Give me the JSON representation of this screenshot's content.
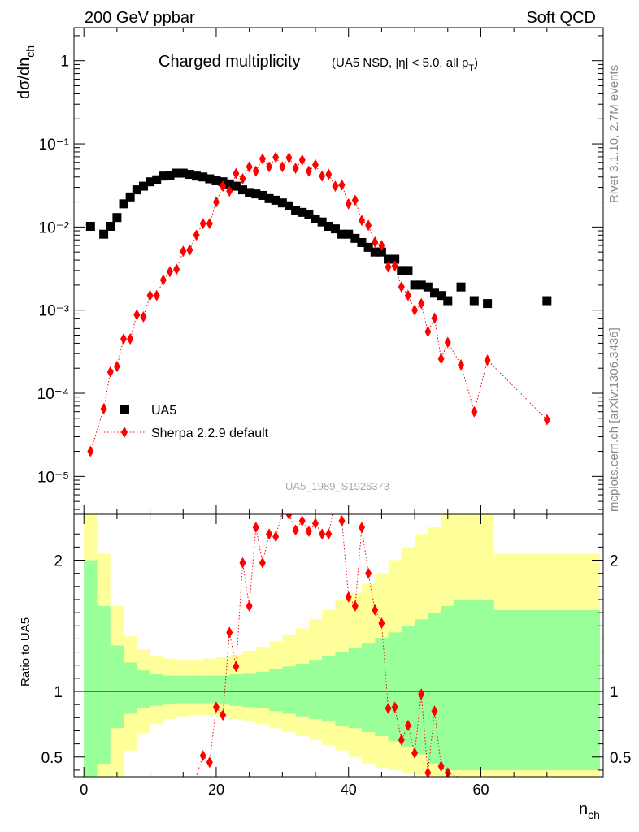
{
  "header": {
    "left": "200 GeV ppbar",
    "right": "Soft QCD"
  },
  "side_text": {
    "top": "Rivet 3.1.10,  2.7M events",
    "bottom": "mcplots.cern.ch [arXiv:1306.3436]"
  },
  "plot": {
    "title_main": "Charged multiplicity",
    "title_detail": "(UA5 NSD, |η| < 5.0, all p",
    "title_sub": "T",
    "title_close": ")",
    "ylabel_main": "dσ/dn",
    "ylabel_sub": "ch",
    "ylabel_ratio": "Ratio to UA5",
    "xlabel_main": "n",
    "xlabel_sub": "ch",
    "watermark": "UA5_1989_S1926373"
  },
  "chart_data": [
    {
      "type": "scatter",
      "panel": "main",
      "yscale": "log",
      "xlim": [
        -1.5,
        78.5
      ],
      "ylim": [
        3.5e-06,
        2.5
      ],
      "y_tick_labels": [
        "10⁻⁵",
        "10⁻⁴",
        "10⁻³",
        "10⁻²",
        "10⁻¹",
        "1"
      ],
      "x_tick_labels": [
        "0",
        "20",
        "40",
        "60"
      ],
      "legend_position": "bottom-left",
      "series": [
        {
          "name": "UA5",
          "color": "#000000",
          "marker": "square",
          "x": [
            1,
            3,
            4,
            5,
            6,
            7,
            8,
            9,
            10,
            11,
            12,
            13,
            14,
            15,
            16,
            17,
            18,
            19,
            20,
            21,
            22,
            23,
            24,
            25,
            26,
            27,
            28,
            29,
            30,
            31,
            32,
            33,
            34,
            35,
            36,
            37,
            38,
            39,
            40,
            41,
            42,
            43,
            44,
            45,
            46,
            47,
            48,
            49,
            50,
            51,
            52,
            53,
            54,
            55,
            57,
            59,
            61,
            70
          ],
          "y": [
            0.0102,
            0.0082,
            0.0102,
            0.013,
            0.019,
            0.023,
            0.028,
            0.031,
            0.035,
            0.037,
            0.041,
            0.042,
            0.0445,
            0.0445,
            0.043,
            0.041,
            0.04,
            0.038,
            0.036,
            0.035,
            0.033,
            0.031,
            0.028,
            0.026,
            0.025,
            0.024,
            0.022,
            0.021,
            0.0195,
            0.018,
            0.016,
            0.015,
            0.014,
            0.0125,
            0.0115,
            0.0102,
            0.0095,
            0.0082,
            0.0082,
            0.0073,
            0.0065,
            0.0057,
            0.005,
            0.005,
            0.0041,
            0.0041,
            0.003,
            0.003,
            0.002,
            0.002,
            0.0019,
            0.0016,
            0.0015,
            0.0013,
            0.0019,
            0.0013,
            0.0012,
            0.0013
          ]
        },
        {
          "name": "Sherpa 2.2.9 default",
          "color": "#ff0000",
          "marker": "diamond",
          "line": "dotted",
          "x": [
            1,
            3,
            4,
            5,
            6,
            7,
            8,
            9,
            10,
            11,
            12,
            13,
            14,
            15,
            16,
            17,
            18,
            19,
            20,
            21,
            22,
            23,
            24,
            25,
            26,
            27,
            28,
            29,
            30,
            31,
            32,
            33,
            34,
            35,
            36,
            37,
            38,
            39,
            40,
            41,
            42,
            43,
            44,
            45,
            46,
            47,
            48,
            49,
            50,
            51,
            52,
            53,
            54,
            55,
            57,
            59,
            61,
            70
          ],
          "y": [
            2e-05,
            6.5e-05,
            0.00018,
            0.00021,
            0.00045,
            0.00045,
            0.00088,
            0.00083,
            0.0015,
            0.0015,
            0.0023,
            0.0029,
            0.0031,
            0.0051,
            0.0053,
            0.008,
            0.011,
            0.011,
            0.02,
            0.031,
            0.027,
            0.044,
            0.038,
            0.053,
            0.047,
            0.066,
            0.053,
            0.069,
            0.053,
            0.068,
            0.051,
            0.064,
            0.047,
            0.056,
            0.041,
            0.043,
            0.031,
            0.032,
            0.019,
            0.021,
            0.012,
            0.0105,
            0.0066,
            0.006,
            0.0033,
            0.0034,
            0.0019,
            0.0015,
            0.001,
            0.0012,
            0.00055,
            0.0008,
            0.00026,
            0.00041,
            0.00022,
            6e-05,
            0.00025,
            4.8e-05
          ]
        }
      ]
    },
    {
      "type": "area",
      "panel": "ratio",
      "ylim": [
        0.35,
        2.35
      ],
      "y_tick_labels": [
        "0.5",
        "1",
        "2"
      ],
      "reference_line": 1,
      "bands": [
        {
          "name": "2 sigma",
          "color": "#ffff99",
          "x_edges": [
            0,
            2,
            4,
            6,
            8,
            10,
            12,
            14,
            16,
            18,
            20,
            22,
            24,
            26,
            28,
            30,
            32,
            34,
            36,
            38,
            40,
            42,
            44,
            46,
            48,
            50,
            52,
            54,
            56,
            58,
            60,
            62,
            78
          ],
          "upper": [
            2.35,
            2.05,
            1.65,
            1.42,
            1.32,
            1.27,
            1.25,
            1.24,
            1.24,
            1.25,
            1.26,
            1.28,
            1.31,
            1.34,
            1.38,
            1.43,
            1.48,
            1.55,
            1.62,
            1.7,
            1.75,
            1.82,
            1.9,
            2.0,
            2.1,
            2.2,
            2.25,
            2.35,
            2.35,
            2.35,
            2.35,
            2.05,
            2.05
          ],
          "lower": [
            0.35,
            0.35,
            0.35,
            0.55,
            0.68,
            0.75,
            0.79,
            0.81,
            0.82,
            0.82,
            0.81,
            0.79,
            0.77,
            0.75,
            0.72,
            0.69,
            0.66,
            0.63,
            0.59,
            0.55,
            0.5,
            0.45,
            0.42,
            0.4,
            0.38,
            0.36,
            0.35,
            0.35,
            0.35,
            0.35,
            0.35,
            0.35,
            0.35
          ]
        },
        {
          "name": "1 sigma",
          "color": "#99ff99",
          "x_edges": [
            0,
            2,
            4,
            6,
            8,
            10,
            12,
            14,
            16,
            18,
            20,
            22,
            24,
            26,
            28,
            30,
            32,
            34,
            36,
            38,
            40,
            42,
            44,
            46,
            48,
            50,
            52,
            54,
            56,
            58,
            60,
            62,
            78
          ],
          "upper": [
            2.0,
            1.65,
            1.35,
            1.22,
            1.16,
            1.13,
            1.12,
            1.12,
            1.12,
            1.12,
            1.12,
            1.13,
            1.14,
            1.15,
            1.17,
            1.19,
            1.21,
            1.24,
            1.27,
            1.3,
            1.33,
            1.37,
            1.41,
            1.45,
            1.5,
            1.55,
            1.6,
            1.65,
            1.7,
            1.7,
            1.7,
            1.62,
            1.62
          ],
          "lower": [
            0.35,
            0.45,
            0.72,
            0.83,
            0.87,
            0.89,
            0.9,
            0.91,
            0.91,
            0.91,
            0.9,
            0.89,
            0.88,
            0.87,
            0.85,
            0.83,
            0.81,
            0.79,
            0.77,
            0.74,
            0.72,
            0.69,
            0.66,
            0.62,
            0.58,
            0.52,
            0.45,
            0.4,
            0.4,
            0.4,
            0.4,
            0.4,
            0.4
          ]
        }
      ],
      "series": [
        {
          "name": "Sherpa 2.2.9 default",
          "color": "#ff0000",
          "marker": "diamond",
          "line": "dotted",
          "x": [
            16,
            18,
            19,
            20,
            21,
            22,
            23,
            24,
            25,
            26,
            27,
            28,
            29,
            30,
            31,
            32,
            33,
            34,
            35,
            36,
            37,
            38,
            39,
            40,
            41,
            42,
            43,
            44,
            45,
            46,
            47,
            48,
            49,
            50,
            51,
            52,
            53,
            54,
            55,
            57,
            59
          ],
          "y": [
            0.2,
            0.51,
            0.46,
            0.88,
            0.82,
            1.45,
            1.19,
            1.98,
            1.65,
            2.25,
            1.98,
            2.2,
            2.18,
            2.37,
            2.35,
            2.23,
            2.3,
            2.22,
            2.28,
            2.2,
            2.2,
            2.47,
            2.3,
            1.72,
            1.65,
            2.25,
            1.9,
            1.62,
            1.52,
            0.87,
            0.88,
            0.63,
            0.74,
            0.53,
            0.98,
            0.38,
            0.85,
            0.43,
            0.38,
            0.34,
            0.3
          ]
        }
      ]
    }
  ],
  "legend": [
    {
      "label": "UA5"
    },
    {
      "label": "Sherpa 2.2.9 default"
    }
  ]
}
